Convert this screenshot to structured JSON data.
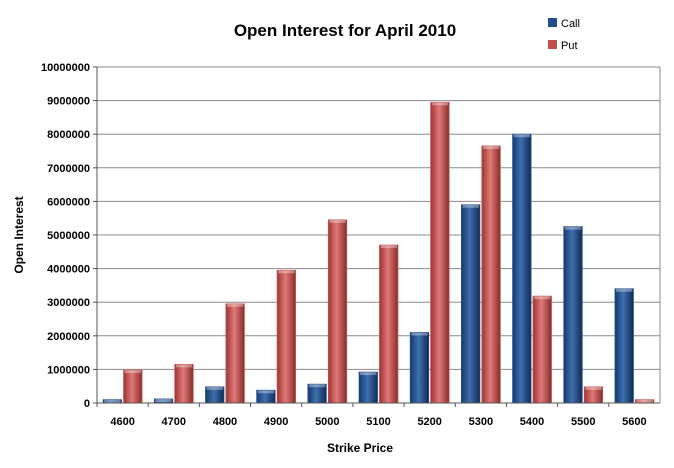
{
  "chart_data": {
    "type": "bar",
    "title": "Open Interest for April 2010",
    "xlabel": "Strike Price",
    "ylabel": "Open Interest",
    "categories": [
      "4600",
      "4700",
      "4800",
      "4900",
      "5000",
      "5100",
      "5200",
      "5300",
      "5400",
      "5500",
      "5600"
    ],
    "series": [
      {
        "name": "Call",
        "color": "#1f4e8c",
        "values": [
          100000,
          120000,
          480000,
          380000,
          560000,
          920000,
          2100000,
          5900000,
          8000000,
          5250000,
          3400000
        ]
      },
      {
        "name": "Put",
        "color": "#c0504d",
        "values": [
          980000,
          1150000,
          2950000,
          3950000,
          5450000,
          4700000,
          8950000,
          7650000,
          3180000,
          480000,
          100000
        ]
      }
    ],
    "ylim": [
      0,
      10000000
    ],
    "yticks": [
      "0",
      "1000000",
      "2000000",
      "3000000",
      "4000000",
      "5000000",
      "6000000",
      "7000000",
      "8000000",
      "9000000",
      "10000000"
    ],
    "grid": true,
    "legend_position": "top-right"
  }
}
